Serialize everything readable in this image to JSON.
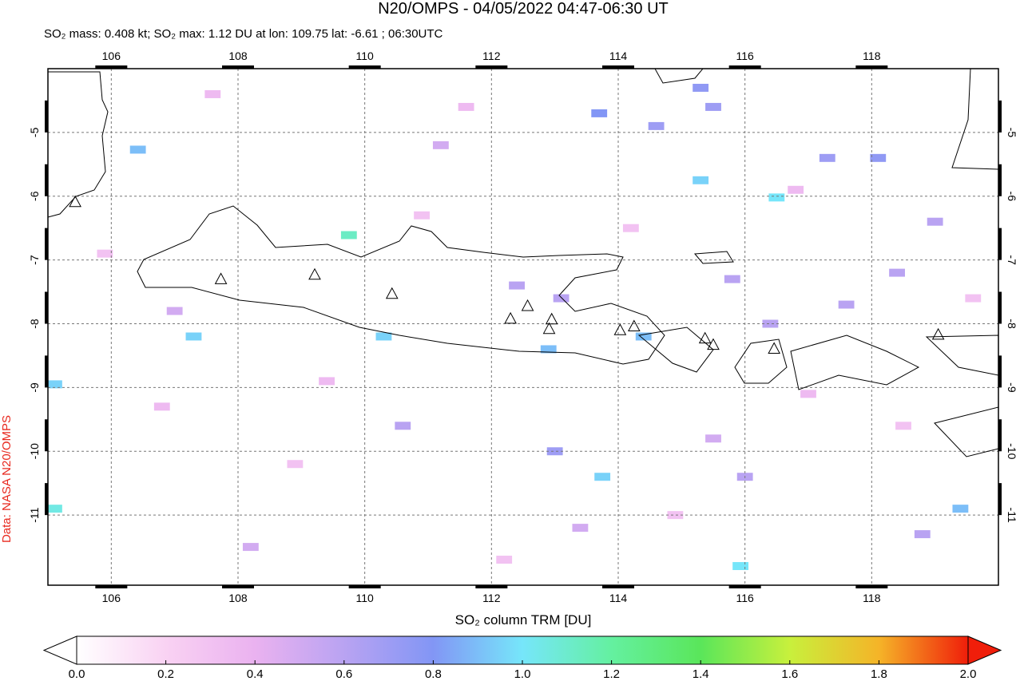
{
  "title": "N20/OMPS - 04/05/2022 04:47-06:30 UT",
  "subtitle": "SO₂ mass: 0.408 kt; SO₂ max: 1.12 DU at lon: 109.75 lat: -6.61 ; 06:30UTC",
  "credit": "Data: NASA N20/OMPS",
  "map": {
    "type": "map",
    "xlim": [
      105,
      120
    ],
    "ylim": [
      -12.1,
      -4
    ],
    "xticks": [
      106,
      108,
      110,
      112,
      114,
      116,
      118
    ],
    "yticks": [
      -5,
      -6,
      -7,
      -8,
      -9,
      -10,
      -11
    ],
    "grid": true,
    "pixels": {
      "lon": [
        109.75,
        116.5,
        115.93,
        113.75,
        115.3,
        113.7,
        115.3,
        115.5,
        114.6,
        117.3,
        118.1,
        119.4,
        112.9,
        114.4,
        110.3,
        107.3,
        105.1,
        105.1,
        106.42,
        112.4,
        113.1,
        115.8,
        116.4,
        117.6,
        118.4,
        110.6,
        113.0,
        116.0,
        118.8,
        108.2,
        111.2,
        107.0,
        119.0,
        115.5,
        113.4,
        106.8,
        108.9,
        111.6,
        114.2,
        117.0,
        119.6,
        105.9,
        109.4,
        112.2,
        116.8,
        118.5,
        110.9,
        107.6,
        114.9
      ],
      "lat": [
        -6.61,
        -6.02,
        -11.8,
        -10.4,
        -5.75,
        -4.7,
        -4.3,
        -4.6,
        -4.9,
        -5.4,
        -5.4,
        -10.9,
        -8.4,
        -8.2,
        -8.2,
        -8.2,
        -8.95,
        -10.9,
        -5.27,
        -7.4,
        -7.6,
        -7.3,
        -8.0,
        -7.7,
        -7.2,
        -9.6,
        -10.0,
        -10.4,
        -11.3,
        -11.5,
        -5.2,
        -7.8,
        -6.4,
        -9.8,
        -11.2,
        -9.3,
        -10.2,
        -4.6,
        -6.5,
        -9.1,
        -7.6,
        -6.9,
        -8.9,
        -11.7,
        -5.9,
        -9.6,
        -6.3,
        -4.4,
        -11.0
      ],
      "values": [
        1.12,
        1.0,
        1.0,
        0.95,
        0.95,
        0.8,
        0.75,
        0.7,
        0.7,
        0.7,
        0.75,
        0.9,
        0.9,
        0.9,
        0.95,
        0.95,
        0.95,
        1.05,
        0.9,
        0.6,
        0.6,
        0.6,
        0.6,
        0.6,
        0.6,
        0.6,
        0.7,
        0.6,
        0.6,
        0.5,
        0.5,
        0.5,
        0.6,
        0.5,
        0.5,
        0.35,
        0.3,
        0.35,
        0.3,
        0.35,
        0.3,
        0.3,
        0.35,
        0.3,
        0.35,
        0.3,
        0.3,
        0.35,
        0.3
      ]
    },
    "volcanoes": {
      "lon": [
        105.43,
        107.73,
        109.21,
        110.43,
        112.3,
        112.57,
        112.95,
        112.91,
        114.03,
        114.25,
        115.37,
        115.5,
        116.46,
        119.05
      ],
      "lat": [
        -6.1,
        -7.31,
        -7.24,
        -7.54,
        -7.93,
        -7.73,
        -7.94,
        -8.09,
        -8.11,
        -8.05,
        -8.24,
        -8.34,
        -8.4,
        -8.18
      ]
    }
  },
  "colorbar": {
    "label": "SO₂ column TRM [DU]",
    "range": [
      0,
      2
    ],
    "ticks": [
      {
        "value": 0,
        "label": "0.0"
      },
      0.2,
      0.4,
      0.6,
      0.8,
      {
        "value": 1,
        "label": "1.0"
      },
      1.2,
      1.4,
      1.6,
      1.8,
      {
        "value": 2,
        "label": "2.0"
      }
    ],
    "colors": [
      "#ffffff",
      "#f9d2f3",
      "#eab2f0",
      "#b9a3f2",
      "#8296f5",
      "#76e6fa",
      "#64f0a0",
      "#5ae65a",
      "#c8f03c",
      "#f5b428",
      "#f01e0a"
    ]
  }
}
